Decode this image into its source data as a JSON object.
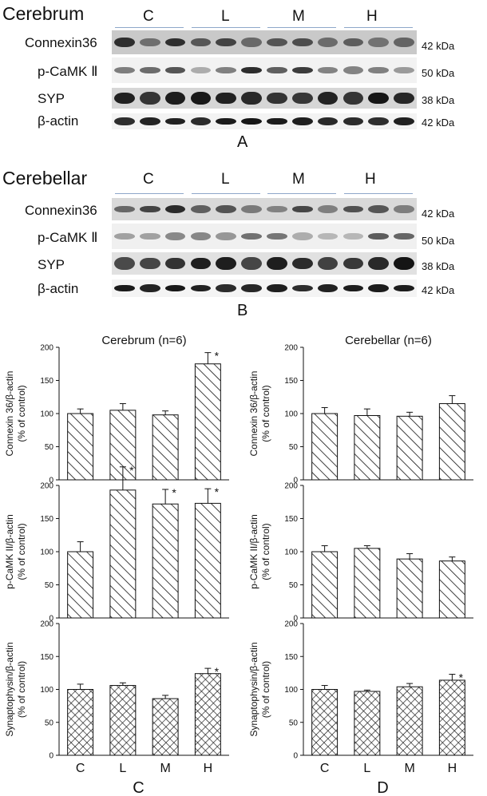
{
  "blots": [
    {
      "title": "Cerebrum",
      "groups": [
        "C",
        "L",
        "M",
        "H"
      ],
      "rows": [
        {
          "protein": "Connexin36",
          "kda": "42 kDa"
        },
        {
          "protein": "p-CaMK Ⅱ",
          "kda": "50 kDa"
        },
        {
          "protein": "SYP",
          "kda": "38 kDa"
        },
        {
          "protein": "β-actin",
          "kda": "42 kDa"
        }
      ],
      "panel": "A"
    },
    {
      "title": "Cerebellar",
      "groups": [
        "C",
        "L",
        "M",
        "H"
      ],
      "rows": [
        {
          "protein": "Connexin36",
          "kda": "42 kDa"
        },
        {
          "protein": "p-CaMK Ⅱ",
          "kda": "50 kDa"
        },
        {
          "protein": "SYP",
          "kda": "38 kDa"
        },
        {
          "protein": "β-actin",
          "kda": "42 kDa"
        }
      ],
      "panel": "B"
    }
  ],
  "chart_data": [
    {
      "type": "bar",
      "title": "Cerebrum (n=6)",
      "categories": [
        "C",
        "L",
        "M",
        "H"
      ],
      "ylabel": "Connexin 36/β-actin\n(% of control)",
      "ylim": [
        0,
        200
      ],
      "yticks": [
        0,
        50,
        100,
        150,
        200
      ],
      "values": [
        100,
        105,
        98,
        175
      ],
      "errors": [
        7,
        10,
        6,
        17
      ],
      "significant": [
        false,
        false,
        false,
        true
      ],
      "pattern": "hatch"
    },
    {
      "type": "bar",
      "title": "",
      "categories": [
        "C",
        "L",
        "M",
        "H"
      ],
      "ylabel": "p-CaMK II/β-actin\n(% of control)",
      "ylim": [
        0,
        200
      ],
      "yticks": [
        0,
        50,
        100,
        150,
        200
      ],
      "values": [
        100,
        193,
        172,
        173
      ],
      "errors": [
        15,
        35,
        22,
        22
      ],
      "significant": [
        false,
        true,
        true,
        true
      ],
      "pattern": "hatch"
    },
    {
      "type": "bar",
      "title": "",
      "categories": [
        "C",
        "L",
        "M",
        "H"
      ],
      "ylabel": "Synaptophysin/β-actin\n(% of control)",
      "ylim": [
        0,
        200
      ],
      "yticks": [
        0,
        50,
        100,
        150,
        200
      ],
      "values": [
        100,
        106,
        86,
        124
      ],
      "errors": [
        8,
        4,
        5,
        8
      ],
      "significant": [
        false,
        false,
        false,
        true
      ],
      "pattern": "cross",
      "xlabels": true,
      "panel": "C"
    },
    {
      "type": "bar",
      "title": "Cerebellar (n=6)",
      "categories": [
        "C",
        "L",
        "M",
        "H"
      ],
      "ylabel": "Connexin 36/β-actin\n(% of control)",
      "ylim": [
        0,
        200
      ],
      "yticks": [
        0,
        50,
        100,
        150,
        200
      ],
      "values": [
        100,
        97,
        96,
        115
      ],
      "errors": [
        9,
        10,
        6,
        12
      ],
      "significant": [
        false,
        false,
        false,
        false
      ],
      "pattern": "hatch"
    },
    {
      "type": "bar",
      "title": "",
      "categories": [
        "C",
        "L",
        "M",
        "H"
      ],
      "ylabel": "p-CaMK II/β-actin\n(% of control)",
      "ylim": [
        0,
        200
      ],
      "yticks": [
        0,
        50,
        100,
        150,
        200
      ],
      "values": [
        100,
        105,
        89,
        86
      ],
      "errors": [
        9,
        4,
        8,
        6
      ],
      "significant": [
        false,
        false,
        false,
        false
      ],
      "pattern": "hatch"
    },
    {
      "type": "bar",
      "title": "",
      "categories": [
        "C",
        "L",
        "M",
        "H"
      ],
      "ylabel": "Synaptophysin/β-actin\n(% of control)",
      "ylim": [
        0,
        200
      ],
      "yticks": [
        0,
        50,
        100,
        150,
        200
      ],
      "values": [
        100,
        97,
        104,
        114
      ],
      "errors": [
        6,
        2,
        5,
        9
      ],
      "significant": [
        false,
        false,
        false,
        true
      ],
      "pattern": "cross",
      "xlabels": true,
      "panel": "D"
    }
  ]
}
